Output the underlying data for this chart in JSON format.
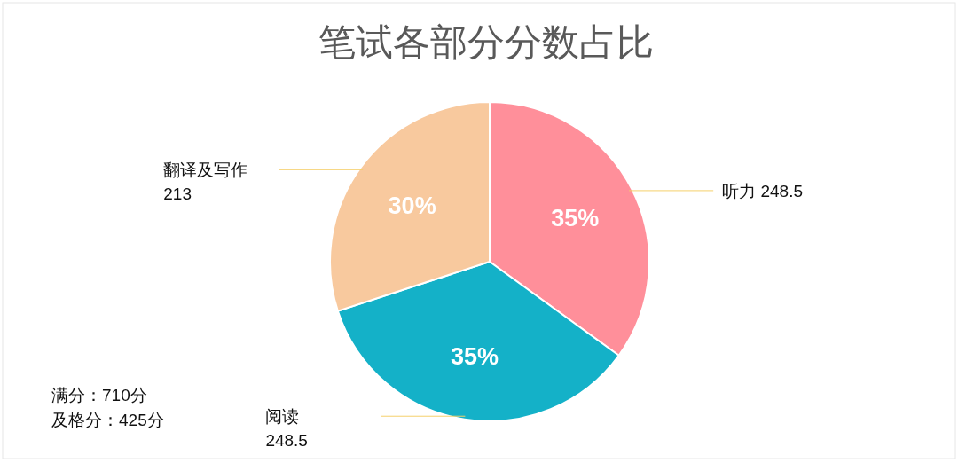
{
  "chart_data": {
    "type": "pie",
    "title": "笔试各部分分数占比",
    "categories": [
      "听力 248.5",
      "阅读 248.5",
      "翻译及写作 213"
    ],
    "values": [
      35,
      35,
      30
    ],
    "colors": [
      "#ff8f9a",
      "#14b1c8",
      "#f8c99e"
    ],
    "value_labels": [
      "35%",
      "35%",
      "30%"
    ],
    "annotations": [
      "满分：710分",
      "及格分：425分"
    ]
  }
}
